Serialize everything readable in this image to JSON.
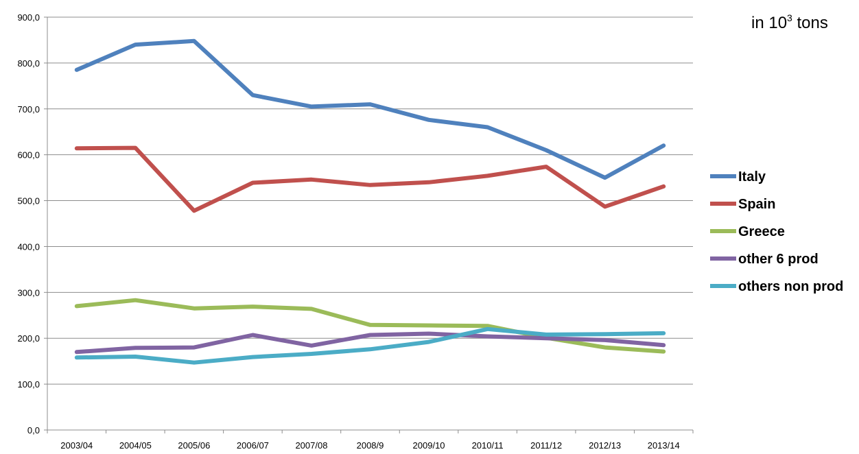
{
  "chart_data": {
    "type": "line",
    "title": "",
    "xlabel": "",
    "ylabel": "",
    "units_annotation": {
      "prefix": "in 10",
      "superscript": "3",
      "suffix": " tons"
    },
    "categories": [
      "2003/04",
      "2004/05",
      "2005/06",
      "2006/07",
      "2007/08",
      "2008/9",
      "2009/10",
      "2010/11",
      "2011/12",
      "2012/13",
      "2013/14"
    ],
    "ylim": [
      0,
      900
    ],
    "yticks": [
      0,
      100,
      200,
      300,
      400,
      500,
      600,
      700,
      800,
      900
    ],
    "ytick_labels": [
      "0,0",
      "100,0",
      "200,0",
      "300,0",
      "400,0",
      "500,0",
      "600,0",
      "700,0",
      "800,0",
      "900,0"
    ],
    "grid": true,
    "legend_position": "right",
    "series": [
      {
        "name": "Italy",
        "color": "#4F81BD",
        "values": [
          785,
          840,
          848,
          730,
          705,
          710,
          676,
          660,
          610,
          550,
          620
        ]
      },
      {
        "name": "Spain",
        "color": "#C0504D",
        "values": [
          614,
          615,
          478,
          539,
          546,
          534,
          540,
          554,
          574,
          487,
          531
        ]
      },
      {
        "name": "Greece",
        "color": "#9BBB59",
        "values": [
          270,
          283,
          265,
          269,
          264,
          229,
          228,
          227,
          201,
          180,
          171
        ]
      },
      {
        "name": "other 6 prod",
        "color": "#8064A2",
        "values": [
          170,
          179,
          180,
          207,
          184,
          207,
          210,
          204,
          200,
          196,
          185
        ]
      },
      {
        "name": "others non prod",
        "color": "#4BACC6",
        "values": [
          158,
          160,
          147,
          159,
          166,
          176,
          192,
          220,
          208,
          209,
          211
        ]
      }
    ]
  }
}
